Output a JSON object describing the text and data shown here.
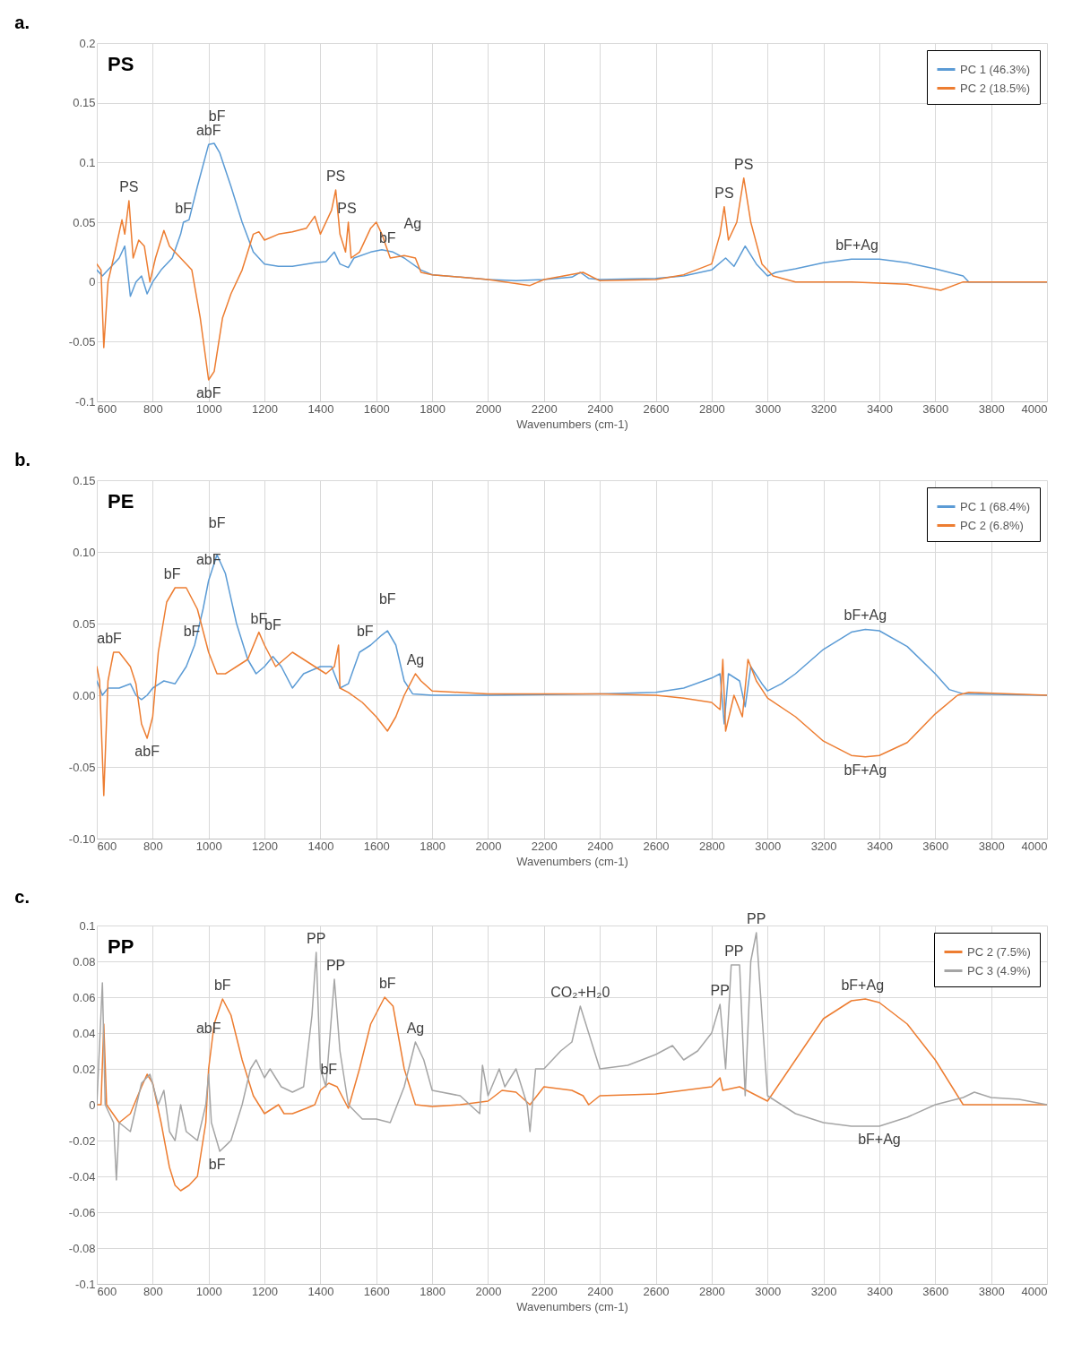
{
  "chart_data": [
    {
      "type": "line",
      "title": "a.",
      "xlabel": "Wavenumbers (cm-1)",
      "grid": true,
      "legend": "top right",
      "xlim": [
        600,
        4000
      ],
      "xticks": [
        600,
        800,
        1000,
        1200,
        1400,
        1600,
        1800,
        2000,
        2200,
        2400,
        2600,
        2800,
        3000,
        3200,
        3400,
        3600,
        3800,
        4000
      ],
      "ylim": [
        -0.1,
        0.2
      ],
      "yticks": [
        -0.1,
        -0.05,
        0,
        0.05,
        0.1,
        0.15,
        0.2
      ],
      "series": [
        {
          "name": "PC 1 (46.3%)",
          "color": "#5b9bd5",
          "x": [
            600,
            620,
            640,
            660,
            680,
            700,
            720,
            740,
            760,
            780,
            800,
            830,
            870,
            900,
            910,
            930,
            960,
            1000,
            1020,
            1040,
            1080,
            1120,
            1160,
            1200,
            1250,
            1300,
            1380,
            1420,
            1450,
            1470,
            1500,
            1520,
            1580,
            1620,
            1660,
            1700,
            1760,
            1800,
            1900,
            2000,
            2100,
            2200,
            2300,
            2330,
            2360,
            2400,
            2600,
            2700,
            2800,
            2850,
            2880,
            2920,
            2960,
            3000,
            3030,
            3100,
            3200,
            3300,
            3400,
            3500,
            3600,
            3700,
            3720,
            3800,
            4000
          ],
          "values": [
            0.01,
            0.005,
            0.01,
            0.015,
            0.02,
            0.03,
            -0.012,
            0.0,
            0.005,
            -0.01,
            0.0,
            0.01,
            0.02,
            0.04,
            0.05,
            0.052,
            0.08,
            0.115,
            0.116,
            0.108,
            0.08,
            0.05,
            0.025,
            0.015,
            0.013,
            0.013,
            0.016,
            0.017,
            0.025,
            0.015,
            0.012,
            0.02,
            0.025,
            0.027,
            0.025,
            0.02,
            0.01,
            0.006,
            0.004,
            0.002,
            0.001,
            0.002,
            0.004,
            0.008,
            0.003,
            0.002,
            0.003,
            0.005,
            0.01,
            0.02,
            0.013,
            0.03,
            0.015,
            0.005,
            0.008,
            0.011,
            0.016,
            0.019,
            0.019,
            0.016,
            0.011,
            0.005,
            0.0,
            0.0,
            0.0
          ]
        },
        {
          "name": "PC 2 (18.5%)",
          "color": "#ed7d31",
          "x": [
            600,
            615,
            625,
            640,
            660,
            690,
            700,
            715,
            730,
            750,
            770,
            790,
            810,
            840,
            860,
            900,
            940,
            970,
            1000,
            1020,
            1050,
            1080,
            1120,
            1160,
            1180,
            1200,
            1250,
            1300,
            1350,
            1380,
            1400,
            1440,
            1455,
            1470,
            1490,
            1500,
            1510,
            1540,
            1580,
            1600,
            1620,
            1650,
            1700,
            1740,
            1760,
            1800,
            1900,
            2000,
            2150,
            2200,
            2340,
            2400,
            2600,
            2700,
            2800,
            2830,
            2845,
            2860,
            2890,
            2915,
            2940,
            2980,
            3020,
            3100,
            3300,
            3500,
            3620,
            3700,
            4000
          ],
          "values": [
            0.015,
            0.01,
            -0.055,
            0.0,
            0.02,
            0.052,
            0.04,
            0.068,
            0.02,
            0.035,
            0.03,
            0.0,
            0.02,
            0.043,
            0.03,
            0.02,
            0.01,
            -0.03,
            -0.082,
            -0.075,
            -0.03,
            -0.01,
            0.01,
            0.04,
            0.042,
            0.035,
            0.04,
            0.042,
            0.045,
            0.055,
            0.04,
            0.06,
            0.077,
            0.04,
            0.025,
            0.05,
            0.02,
            0.025,
            0.045,
            0.05,
            0.04,
            0.02,
            0.022,
            0.02,
            0.008,
            0.006,
            0.004,
            0.002,
            -0.003,
            0.002,
            0.008,
            0.001,
            0.002,
            0.006,
            0.015,
            0.04,
            0.063,
            0.035,
            0.05,
            0.087,
            0.05,
            0.015,
            0.005,
            0.0,
            0.0,
            -0.002,
            -0.007,
            0.0,
            0.0
          ]
        }
      ],
      "annotations": [
        "PS",
        {
          "text": "PS",
          "x": 715,
          "y": 0.068
        },
        {
          "text": "bF",
          "x": 910,
          "y": 0.05
        },
        {
          "text": "abF",
          "x": 1000,
          "y": 0.115
        },
        {
          "text": "bF",
          "x": 1030,
          "y": 0.112
        },
        {
          "text": "PS",
          "x": 1455,
          "y": 0.077
        },
        {
          "text": "PS",
          "x": 1495,
          "y": 0.05
        },
        {
          "text": "bF",
          "x": 1640,
          "y": 0.025
        },
        {
          "text": "Ag",
          "x": 1730,
          "y": 0.022
        },
        {
          "text": "PS",
          "x": 2845,
          "y": 0.063
        },
        {
          "text": "PS",
          "x": 2915,
          "y": 0.087
        },
        {
          "text": "bF+Ag",
          "x": 3320,
          "y": 0.019
        },
        {
          "text": "abF",
          "x": 1000,
          "y": -0.082
        }
      ]
    },
    {
      "type": "line",
      "title": "b.",
      "xlabel": "Wavenumbers (cm-1)",
      "grid": true,
      "legend": "top right",
      "xlim": [
        600,
        4000
      ],
      "xticks": [
        600,
        800,
        1000,
        1200,
        1400,
        1600,
        1800,
        2000,
        2200,
        2400,
        2600,
        2800,
        3000,
        3200,
        3400,
        3600,
        3800,
        4000
      ],
      "ylim": [
        -0.1,
        0.15
      ],
      "yticks": [
        {
          "value": -0.1,
          "label": "-0.10"
        },
        -0.05,
        {
          "value": 0,
          "label": "0.00"
        },
        0.05,
        {
          "value": 0.1,
          "label": "0.10"
        },
        0.15
      ],
      "series": [
        {
          "name": "PC 1 (68.4%)",
          "color": "#5b9bd5",
          "x": [
            600,
            620,
            640,
            680,
            720,
            740,
            760,
            780,
            800,
            840,
            880,
            920,
            950,
            980,
            1000,
            1030,
            1060,
            1100,
            1140,
            1170,
            1200,
            1230,
            1260,
            1300,
            1340,
            1400,
            1440,
            1470,
            1500,
            1540,
            1580,
            1620,
            1640,
            1670,
            1700,
            1730,
            1800,
            2000,
            2400,
            2600,
            2700,
            2800,
            2830,
            2845,
            2860,
            2900,
            2920,
            2940,
            2980,
            3000,
            3050,
            3100,
            3200,
            3300,
            3350,
            3400,
            3500,
            3600,
            3650,
            3700,
            4000
          ],
          "values": [
            0.01,
            0.0,
            0.005,
            0.005,
            0.008,
            0.0,
            -0.003,
            0.0,
            0.005,
            0.01,
            0.008,
            0.02,
            0.035,
            0.06,
            0.08,
            0.098,
            0.085,
            0.05,
            0.025,
            0.015,
            0.02,
            0.027,
            0.02,
            0.005,
            0.015,
            0.02,
            0.02,
            0.005,
            0.008,
            0.03,
            0.035,
            0.042,
            0.045,
            0.035,
            0.01,
            0.001,
            0.0,
            0.0,
            0.001,
            0.002,
            0.005,
            0.012,
            0.015,
            -0.02,
            0.015,
            0.01,
            -0.008,
            0.02,
            0.008,
            0.003,
            0.008,
            0.015,
            0.032,
            0.044,
            0.046,
            0.045,
            0.034,
            0.015,
            0.004,
            0.001,
            0.0
          ]
        },
        {
          "name": "PC 2 (6.8%)",
          "color": "#ed7d31",
          "x": [
            600,
            610,
            625,
            640,
            660,
            680,
            720,
            740,
            760,
            780,
            800,
            820,
            850,
            880,
            920,
            960,
            1000,
            1030,
            1060,
            1100,
            1140,
            1180,
            1200,
            1240,
            1270,
            1300,
            1340,
            1380,
            1420,
            1450,
            1465,
            1470,
            1500,
            1550,
            1600,
            1640,
            1670,
            1700,
            1740,
            1760,
            1800,
            2000,
            2400,
            2600,
            2700,
            2800,
            2830,
            2840,
            2850,
            2880,
            2910,
            2930,
            2960,
            3000,
            3100,
            3200,
            3300,
            3350,
            3400,
            3500,
            3600,
            3680,
            3720,
            4000
          ],
          "values": [
            0.02,
            0.01,
            -0.07,
            0.01,
            0.03,
            0.03,
            0.02,
            0.008,
            -0.02,
            -0.03,
            -0.015,
            0.03,
            0.065,
            0.075,
            0.075,
            0.06,
            0.03,
            0.015,
            0.015,
            0.02,
            0.025,
            0.044,
            0.035,
            0.02,
            0.025,
            0.03,
            0.025,
            0.02,
            0.015,
            0.02,
            0.035,
            0.005,
            0.002,
            -0.005,
            -0.015,
            -0.025,
            -0.015,
            0.0,
            0.015,
            0.01,
            0.003,
            0.001,
            0.001,
            0.0,
            -0.002,
            -0.005,
            -0.01,
            0.025,
            -0.025,
            0.0,
            -0.015,
            0.025,
            0.01,
            -0.002,
            -0.015,
            -0.032,
            -0.042,
            -0.043,
            -0.042,
            -0.033,
            -0.013,
            0.0,
            0.002,
            0.0
          ]
        }
      ],
      "annotations": [
        "PE",
        {
          "text": "abF",
          "x": 645,
          "y": 0.03
        },
        {
          "text": "bF",
          "x": 870,
          "y": 0.075
        },
        {
          "text": "bF",
          "x": 940,
          "y": 0.035
        },
        {
          "text": "abF",
          "x": 1000,
          "y": 0.085
        },
        {
          "text": "bF",
          "x": 1030,
          "y": 0.098
        },
        {
          "text": "bF",
          "x": 1180,
          "y": 0.044
        },
        {
          "text": "bF",
          "x": 1230,
          "y": 0.027
        },
        {
          "text": "bF",
          "x": 1560,
          "y": 0.035
        },
        {
          "text": "bF",
          "x": 1640,
          "y": 0.045
        },
        {
          "text": "Ag",
          "x": 1740,
          "y": 0.015
        },
        {
          "text": "bF+Ag",
          "x": 3350,
          "y": 0.046
        },
        {
          "text": "abF",
          "x": 780,
          "y": -0.03
        },
        {
          "text": "bF+Ag",
          "x": 3350,
          "y": -0.043
        }
      ]
    },
    {
      "type": "line",
      "title": "c.",
      "xlabel": "Wavenumbers (cm-1)",
      "grid": true,
      "legend": "top right",
      "xlim": [
        600,
        4000
      ],
      "xticks": [
        600,
        800,
        1000,
        1200,
        1400,
        1600,
        1800,
        2000,
        2200,
        2400,
        2600,
        2800,
        3000,
        3200,
        3400,
        3600,
        3800,
        4000
      ],
      "ylim": [
        -0.1,
        0.1
      ],
      "yticks": [
        -0.1,
        -0.08,
        -0.06,
        -0.04,
        -0.02,
        0,
        0.02,
        0.04,
        0.06,
        0.08,
        0.1
      ],
      "series": [
        {
          "name": "PC 2 (7.5%)",
          "color": "#ed7d31",
          "x": [
            600,
            615,
            625,
            635,
            680,
            720,
            760,
            780,
            800,
            830,
            860,
            880,
            900,
            930,
            960,
            990,
            1000,
            1020,
            1050,
            1080,
            1120,
            1160,
            1200,
            1250,
            1270,
            1300,
            1350,
            1380,
            1400,
            1430,
            1460,
            1500,
            1540,
            1580,
            1630,
            1660,
            1700,
            1740,
            1800,
            1900,
            2000,
            2050,
            2100,
            2150,
            2200,
            2300,
            2340,
            2360,
            2400,
            2600,
            2700,
            2800,
            2830,
            2840,
            2900,
            3000,
            3100,
            3200,
            3300,
            3350,
            3400,
            3500,
            3600,
            3680,
            3700,
            4000
          ],
          "values": [
            0.0,
            0.0,
            0.045,
            0.0,
            -0.01,
            -0.005,
            0.01,
            0.017,
            0.012,
            -0.01,
            -0.035,
            -0.045,
            -0.048,
            -0.045,
            -0.04,
            -0.01,
            0.02,
            0.045,
            0.059,
            0.05,
            0.025,
            0.005,
            -0.005,
            0.0,
            -0.005,
            -0.005,
            -0.002,
            0.0,
            0.008,
            0.012,
            0.01,
            -0.002,
            0.02,
            0.045,
            0.06,
            0.055,
            0.02,
            0.0,
            -0.001,
            0.0,
            0.002,
            0.008,
            0.007,
            0.0,
            0.01,
            0.008,
            0.005,
            0.0,
            0.005,
            0.006,
            0.008,
            0.01,
            0.015,
            0.008,
            0.01,
            0.002,
            0.025,
            0.048,
            0.058,
            0.059,
            0.057,
            0.045,
            0.025,
            0.005,
            0.0,
            0.0
          ]
        },
        {
          "name": "PC 3 (4.9%)",
          "color": "#a5a5a5",
          "x": [
            600,
            620,
            630,
            660,
            670,
            680,
            720,
            760,
            790,
            820,
            840,
            860,
            880,
            900,
            920,
            960,
            990,
            1000,
            1010,
            1040,
            1080,
            1120,
            1150,
            1170,
            1200,
            1220,
            1260,
            1300,
            1340,
            1370,
            1385,
            1400,
            1420,
            1450,
            1470,
            1500,
            1550,
            1600,
            1650,
            1700,
            1740,
            1770,
            1800,
            1900,
            1970,
            1980,
            2000,
            2040,
            2060,
            2100,
            2140,
            2150,
            2170,
            2200,
            2260,
            2300,
            2330,
            2360,
            2380,
            2400,
            2500,
            2600,
            2660,
            2700,
            2750,
            2800,
            2830,
            2850,
            2870,
            2900,
            2920,
            2940,
            2960,
            2980,
            3000,
            3100,
            3200,
            3300,
            3400,
            3500,
            3600,
            3700,
            3740,
            3800,
            3900,
            4000
          ],
          "values": [
            0.0,
            0.068,
            0.0,
            -0.01,
            -0.042,
            -0.01,
            -0.015,
            0.012,
            0.017,
            0.0,
            0.008,
            -0.015,
            -0.02,
            0.0,
            -0.015,
            -0.02,
            0.0,
            0.017,
            -0.01,
            -0.026,
            -0.02,
            0.0,
            0.02,
            0.025,
            0.015,
            0.02,
            0.01,
            0.007,
            0.01,
            0.05,
            0.085,
            0.02,
            0.01,
            0.07,
            0.03,
            0.0,
            -0.008,
            -0.008,
            -0.01,
            0.01,
            0.035,
            0.025,
            0.008,
            0.005,
            -0.005,
            0.022,
            0.005,
            0.02,
            0.01,
            0.02,
            0.0,
            -0.015,
            0.02,
            0.02,
            0.03,
            0.035,
            0.055,
            0.04,
            0.03,
            0.02,
            0.022,
            0.028,
            0.033,
            0.025,
            0.03,
            0.04,
            0.056,
            0.02,
            0.078,
            0.078,
            0.005,
            0.08,
            0.096,
            0.05,
            0.005,
            -0.005,
            -0.01,
            -0.012,
            -0.012,
            -0.007,
            0.0,
            0.004,
            0.007,
            0.004,
            0.003,
            0.0
          ]
        }
      ],
      "annotations": [
        "PP",
        {
          "text": "abF",
          "x": 1000,
          "y": 0.035
        },
        {
          "text": "bF",
          "x": 1050,
          "y": 0.059
        },
        {
          "text": "PP",
          "x": 1385,
          "y": 0.085
        },
        {
          "text": "PP",
          "x": 1455,
          "y": 0.07
        },
        {
          "text": "bF",
          "x": 1640,
          "y": 0.06
        },
        {
          "text": "Ag",
          "x": 1740,
          "y": 0.035
        },
        {
          "text": "CO₂+H₂0",
          "x": 2330,
          "y": 0.055
        },
        {
          "text": "PP",
          "x": 2830,
          "y": 0.056
        },
        {
          "text": "PP",
          "x": 2880,
          "y": 0.078
        },
        {
          "text": "PP",
          "x": 2960,
          "y": 0.096
        },
        {
          "text": "bF+Ag",
          "x": 3340,
          "y": 0.059
        },
        {
          "text": "bF",
          "x": 1030,
          "y": -0.026
        },
        {
          "text": "bF",
          "x": 1430,
          "y": 0.012
        },
        {
          "text": "bF+Ag",
          "x": 3400,
          "y": -0.012
        }
      ]
    }
  ]
}
